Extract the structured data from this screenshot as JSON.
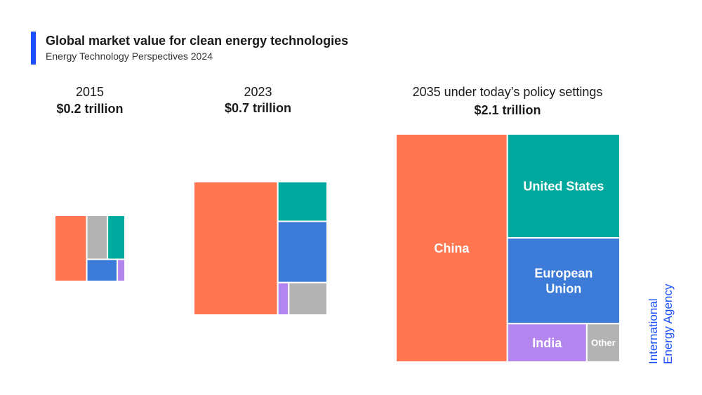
{
  "header": {
    "title": "Global market value for clean energy technologies",
    "subtitle": "Energy Technology Perspectives 2024",
    "accent_color": "#1a4fff"
  },
  "brand": {
    "line1": "International",
    "line2": "Energy Agency",
    "color": "#1a4fff"
  },
  "colors": {
    "China": "#ff7650",
    "United States": "#00a99d",
    "European Union": "#3d7bd8",
    "India": "#b286ee",
    "Other": "#b3b3b3"
  },
  "chart_data": {
    "type": "treemap",
    "unit": "trillion USD",
    "panels": [
      {
        "label": "2015",
        "total_label": "$0.2 trillion",
        "total": 0.2,
        "segments": [
          {
            "region": "China",
            "value_share": 0.44
          },
          {
            "region": "Other",
            "value_share": 0.19
          },
          {
            "region": "United States",
            "value_share": 0.16
          },
          {
            "region": "European Union",
            "value_share": 0.14
          },
          {
            "region": "India",
            "value_share": 0.035
          }
        ]
      },
      {
        "label": "2023",
        "total_label": "$0.7 trillion",
        "total": 0.7,
        "segments": [
          {
            "region": "China",
            "value_share": 0.63
          },
          {
            "region": "United States",
            "value_share": 0.11
          },
          {
            "region": "European Union",
            "value_share": 0.17
          },
          {
            "region": "India",
            "value_share": 0.02
          },
          {
            "region": "Other",
            "value_share": 0.07
          }
        ]
      },
      {
        "label": "2035 under today’s policy settings",
        "total_label": "$2.1 trillion",
        "total": 2.1,
        "segments": [
          {
            "region": "China",
            "region_label": "China",
            "value_share": 0.5
          },
          {
            "region": "United States",
            "region_label": "United States",
            "value_share": 0.23
          },
          {
            "region": "European Union",
            "region_label": "European\nUnion",
            "value_share": 0.19
          },
          {
            "region": "India",
            "region_label": "India",
            "value_share": 0.06
          },
          {
            "region": "Other",
            "region_label": "Other",
            "value_share": 0.025
          }
        ]
      }
    ]
  }
}
